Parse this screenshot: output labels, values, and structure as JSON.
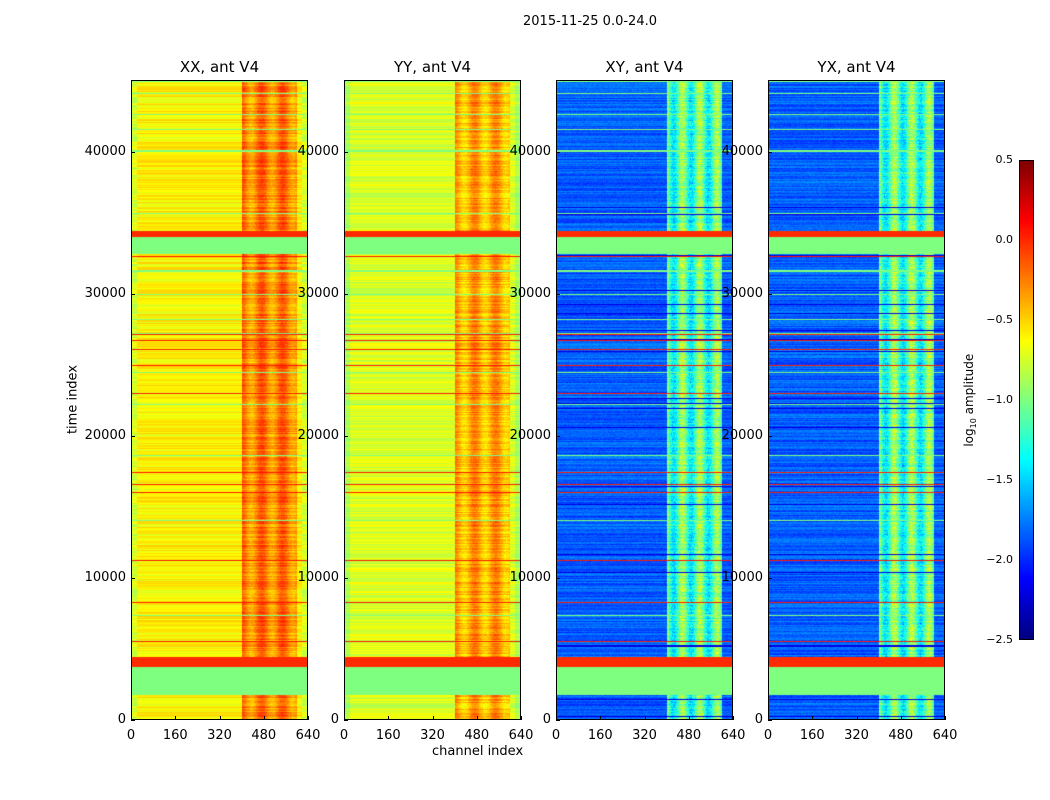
{
  "chart_data": {
    "type": "heatmap",
    "title": "2015-11-25 0.0-24.0",
    "xlabel": "channel index",
    "ylabel": "time index",
    "xlim": [
      0,
      640
    ],
    "ylim": [
      0,
      45100
    ],
    "xticks": [
      "0",
      "160",
      "320",
      "480",
      "640"
    ],
    "xtick_values": [
      0,
      160,
      320,
      480,
      640
    ],
    "yticks": [
      "0",
      "10000",
      "20000",
      "30000",
      "40000"
    ],
    "ytick_values": [
      0,
      10000,
      20000,
      30000,
      40000
    ],
    "panels": [
      {
        "title": "XX, ant V4",
        "kind": "auto",
        "base": -0.6
      },
      {
        "title": "YY, ant V4",
        "kind": "auto",
        "base": -0.72
      },
      {
        "title": "XY, ant V4",
        "kind": "cross",
        "base": -1.85
      },
      {
        "title": "YX, ant V4",
        "kind": "cross",
        "base": -1.85
      }
    ],
    "colorbar": {
      "label": "log10 amplitude",
      "label_base": "log",
      "label_sub": "10",
      "label_rest": " amplitude",
      "range": [
        -2.5,
        0.5
      ],
      "ticks": [
        "0.5",
        "0.0",
        "−0.5",
        "−1.0",
        "−1.5",
        "−2.0",
        "−2.5"
      ],
      "tick_values": [
        0.5,
        0.0,
        -0.5,
        -1.0,
        -1.5,
        -2.0,
        -2.5
      ],
      "colormap": "jet"
    }
  }
}
